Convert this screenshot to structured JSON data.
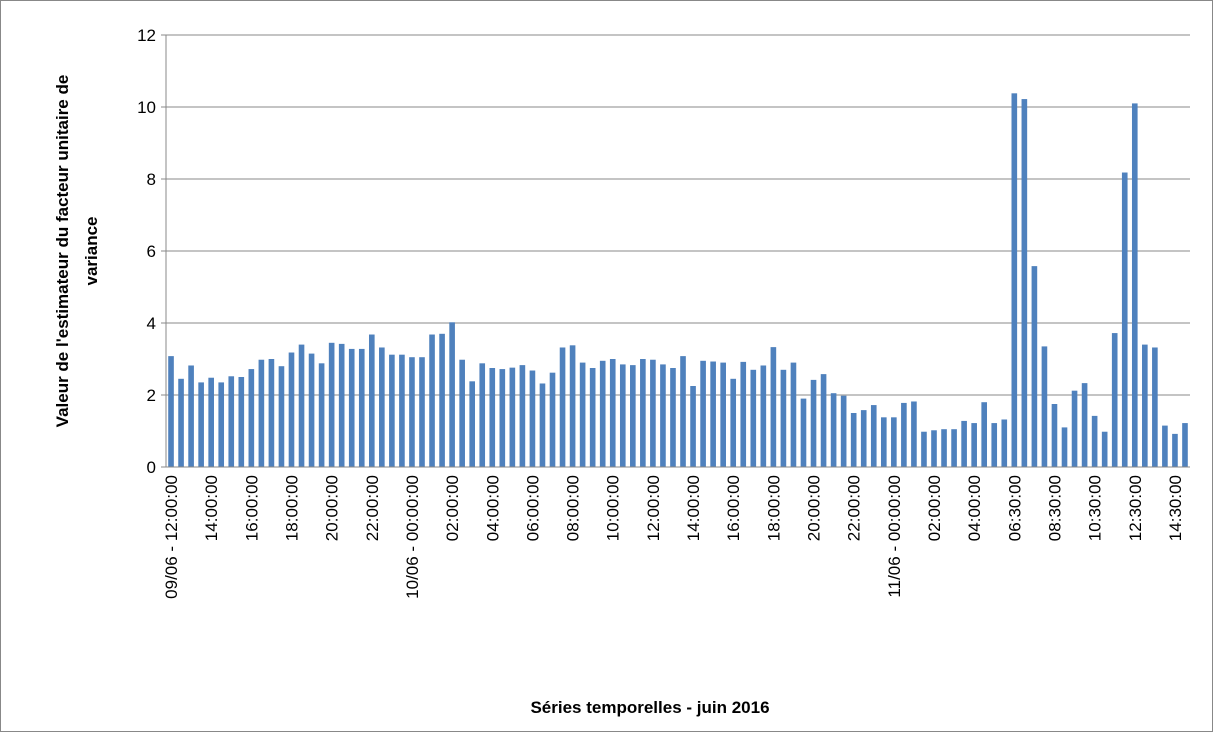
{
  "chart_data": {
    "type": "bar",
    "ylabel": [
      "Valeur de l'estimateur du facteur unitaire de",
      "variance"
    ],
    "xlabel": "Séries temporelles - juin 2016",
    "categories": [
      "09/06 - 12:00:00",
      null,
      null,
      null,
      "14:00:00",
      null,
      null,
      null,
      "16:00:00",
      null,
      null,
      null,
      "18:00:00",
      null,
      null,
      null,
      "20:00:00",
      null,
      null,
      null,
      "22:00:00",
      null,
      null,
      null,
      "10/06 - 00:00:00",
      null,
      null,
      null,
      "02:00:00",
      null,
      null,
      null,
      "04:00:00",
      null,
      null,
      null,
      "06:00:00",
      null,
      null,
      null,
      "08:00:00",
      null,
      null,
      null,
      "10:00:00",
      null,
      null,
      null,
      "12:00:00",
      null,
      null,
      null,
      "14:00:00",
      null,
      null,
      null,
      "16:00:00",
      null,
      null,
      null,
      "18:00:00",
      null,
      null,
      null,
      "20:00:00",
      null,
      null,
      null,
      "22:00:00",
      null,
      null,
      null,
      "11/06 - 00:00:00",
      null,
      null,
      null,
      "02:00:00",
      null,
      null,
      null,
      "04:00:00",
      null,
      null,
      null,
      "06:30:00",
      null,
      null,
      null,
      "08:30:00",
      null,
      null,
      null,
      "10:30:00",
      null,
      null,
      null,
      "12:30:00",
      null,
      null,
      null,
      "14:30:00",
      null
    ],
    "values": [
      3.08,
      2.45,
      2.82,
      2.35,
      2.48,
      2.35,
      2.52,
      2.5,
      2.72,
      2.98,
      3.0,
      2.8,
      3.18,
      3.4,
      3.15,
      2.88,
      3.45,
      3.42,
      3.28,
      3.28,
      3.68,
      3.32,
      3.12,
      3.12,
      3.05,
      3.05,
      3.68,
      3.7,
      4.02,
      2.98,
      2.38,
      2.88,
      2.75,
      2.72,
      2.76,
      2.83,
      2.68,
      2.32,
      2.62,
      3.32,
      3.38,
      2.9,
      2.75,
      2.95,
      3.0,
      2.85,
      2.83,
      3.0,
      2.98,
      2.85,
      2.75,
      3.08,
      2.25,
      2.95,
      2.93,
      2.9,
      2.45,
      2.92,
      2.7,
      2.82,
      3.33,
      2.7,
      2.9,
      1.9,
      2.42,
      2.58,
      2.05,
      1.98,
      1.5,
      1.58,
      1.72,
      1.38,
      1.38,
      1.78,
      1.82,
      0.98,
      1.02,
      1.05,
      1.05,
      1.28,
      1.22,
      1.8,
      1.22,
      1.32,
      10.38,
      10.22,
      5.58,
      3.35,
      1.75,
      1.1,
      2.12,
      2.33,
      1.42,
      0.98,
      3.72,
      8.18,
      10.1,
      3.4,
      3.32,
      1.15,
      0.92,
      1.22
    ],
    "color": "#4f81bd",
    "ylim": [
      0,
      12
    ],
    "yticks": [
      0,
      2,
      4,
      6,
      8,
      10,
      12
    ],
    "grid": true
  }
}
